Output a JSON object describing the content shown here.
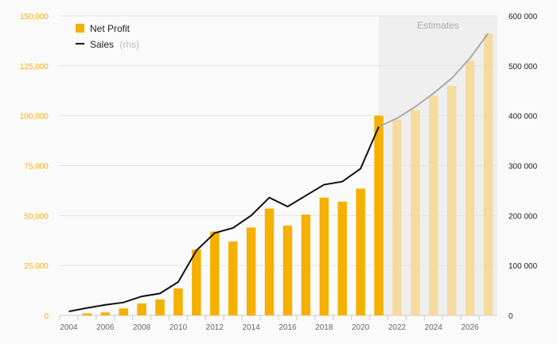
{
  "chart_data": {
    "type": "bar+line",
    "x": [
      2004,
      2005,
      2006,
      2007,
      2008,
      2009,
      2010,
      2011,
      2012,
      2013,
      2014,
      2015,
      2016,
      2017,
      2018,
      2019,
      2020,
      2021,
      2022,
      2023,
      2024,
      2025,
      2026,
      2027
    ],
    "x_ticks": [
      "2004",
      "2006",
      "2008",
      "2010",
      "2012",
      "2014",
      "2016",
      "2018",
      "2020",
      "2022",
      "2024",
      "2026"
    ],
    "series": [
      {
        "name": "Net Profit",
        "kind": "bar",
        "axis": "left",
        "color": "#f5b000",
        "estimate_color": "#f5dba0",
        "values": [
          0,
          1000,
          1500,
          3500,
          6000,
          8000,
          13500,
          33000,
          42000,
          37000,
          44000,
          53500,
          45000,
          50500,
          59000,
          57000,
          63500,
          100000,
          98000,
          103000,
          110000,
          115000,
          127500,
          141000
        ]
      },
      {
        "name": "Sales",
        "name_suffix": "(rhs)",
        "kind": "line",
        "axis": "right",
        "color": "#111111",
        "estimate_color": "#aaaaaa",
        "values": [
          8000,
          15000,
          21000,
          26000,
          38000,
          44000,
          67000,
          130000,
          165000,
          175000,
          200000,
          236000,
          218000,
          240000,
          262000,
          268000,
          294000,
          378000,
          395000,
          418000,
          445000,
          475000,
          515000,
          565000
        ]
      }
    ],
    "estimates_from": 2022,
    "estimates_label": "Estimates",
    "y_left": {
      "lim": [
        0,
        150000
      ],
      "ticks": [
        "0",
        "25,000",
        "50,000",
        "75,000",
        "100,000",
        "125,000",
        "150,000"
      ],
      "values": [
        0,
        25000,
        50000,
        75000,
        100000,
        125000,
        150000
      ],
      "color": "#f5b000"
    },
    "y_right": {
      "lim": [
        0,
        600000
      ],
      "ticks": [
        "0",
        "100 000",
        "200 000",
        "300 000",
        "400 000",
        "500 000",
        "600 000"
      ],
      "values": [
        0,
        100000,
        200000,
        300000,
        400000,
        500000,
        600000
      ],
      "color": "#222222"
    },
    "grid": true,
    "legend": "top-left"
  }
}
